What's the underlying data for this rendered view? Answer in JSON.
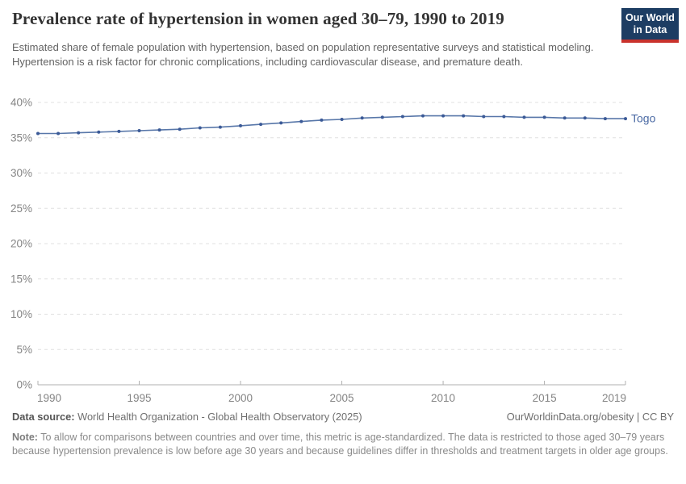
{
  "header": {
    "title": "Prevalence rate of hypertension in women aged 30–79, 1990 to 2019",
    "subtitle": "Estimated share of female population with hypertension, based on population representative surveys and statistical modeling. Hypertension is a risk factor for chronic complications, including cardiovascular disease, and premature death.",
    "logo": {
      "line1": "Our World",
      "line2": "in Data",
      "bg_color": "#1d3d63",
      "stripe_color": "#c9322c"
    }
  },
  "chart_data": {
    "type": "line",
    "title": "Prevalence rate of hypertension in women aged 30–79, 1990 to 2019",
    "xlabel": "",
    "ylabel": "",
    "xlim": [
      1990,
      2019
    ],
    "ylim": [
      0,
      40
    ],
    "x_ticks": [
      1990,
      1995,
      2000,
      2005,
      2010,
      2015,
      2019
    ],
    "y_ticks": [
      0,
      5,
      10,
      15,
      20,
      25,
      30,
      35,
      40
    ],
    "y_suffix": "%",
    "grid": "horizontal-dashed",
    "legend_position": "end-of-line",
    "x": [
      1990,
      1991,
      1992,
      1993,
      1994,
      1995,
      1996,
      1997,
      1998,
      1999,
      2000,
      2001,
      2002,
      2003,
      2004,
      2005,
      2006,
      2007,
      2008,
      2009,
      2010,
      2011,
      2012,
      2013,
      2014,
      2015,
      2016,
      2017,
      2018,
      2019
    ],
    "series": [
      {
        "name": "Togo",
        "values": [
          35.6,
          35.6,
          35.7,
          35.8,
          35.9,
          36.0,
          36.1,
          36.2,
          36.4,
          36.5,
          36.7,
          36.9,
          37.1,
          37.3,
          37.5,
          37.6,
          37.8,
          37.9,
          38.0,
          38.1,
          38.1,
          38.1,
          38.0,
          38.0,
          37.9,
          37.9,
          37.8,
          37.8,
          37.7,
          37.7
        ],
        "line_color": "#5877a9",
        "dot_color": "#3b5a97",
        "label_color": "#4b6aa4"
      }
    ],
    "colors": {
      "gridline": "#e0e0e0",
      "axis": "#b0b0b0",
      "tick_label": "#858585"
    }
  },
  "footer": {
    "source_label": "Data source:",
    "source_text": "World Health Organization - Global Health Observatory (2025)",
    "credit": "OurWorldinData.org/obesity | CC BY",
    "note_label": "Note:",
    "note_text": "To allow for comparisons between countries and over time, this metric is age-standardized. The data is restricted to those aged 30–79 years because hypertension prevalence is low before age 30 years and because guidelines differ in thresholds and treatment targets in older age groups."
  }
}
